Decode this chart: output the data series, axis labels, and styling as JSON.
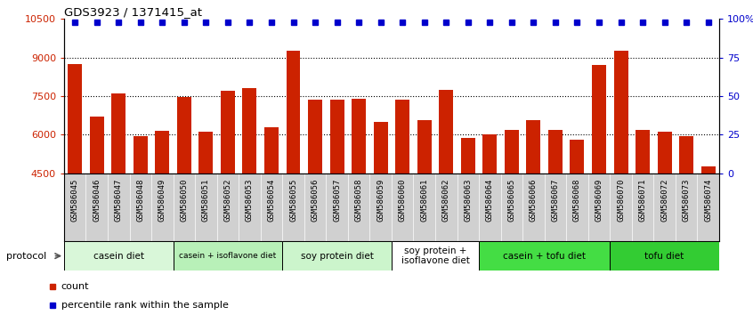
{
  "title": "GDS3923 / 1371415_at",
  "samples": [
    "GSM586045",
    "GSM586046",
    "GSM586047",
    "GSM586048",
    "GSM586049",
    "GSM586050",
    "GSM586051",
    "GSM586052",
    "GSM586053",
    "GSM586054",
    "GSM586055",
    "GSM586056",
    "GSM586057",
    "GSM586058",
    "GSM586059",
    "GSM586060",
    "GSM586061",
    "GSM586062",
    "GSM586063",
    "GSM586064",
    "GSM586065",
    "GSM586066",
    "GSM586067",
    "GSM586068",
    "GSM586069",
    "GSM586070",
    "GSM586071",
    "GSM586072",
    "GSM586073",
    "GSM586074"
  ],
  "counts": [
    8750,
    6700,
    7600,
    5950,
    6150,
    7450,
    6100,
    7700,
    7820,
    6300,
    9250,
    7350,
    7350,
    7400,
    6500,
    7350,
    6550,
    7750,
    5870,
    6000,
    6200,
    6550,
    6200,
    5800,
    8700,
    9280,
    6200,
    6100,
    5950,
    4750
  ],
  "percentile_ranks": [
    98,
    98,
    98,
    98,
    98,
    98,
    98,
    98,
    98,
    98,
    98,
    98,
    98,
    98,
    98,
    98,
    98,
    98,
    98,
    98,
    98,
    98,
    98,
    98,
    98,
    98,
    98,
    98,
    98,
    98
  ],
  "protocols": [
    {
      "label": "casein diet",
      "start": 0,
      "end": 5,
      "color": "#d9f7d9"
    },
    {
      "label": "casein + isoflavone diet",
      "start": 5,
      "end": 10,
      "color": "#b8f0b8"
    },
    {
      "label": "soy protein diet",
      "start": 10,
      "end": 15,
      "color": "#ccf5cc"
    },
    {
      "label": "soy protein +\nisoflavone diet",
      "start": 15,
      "end": 19,
      "color": "#ffffff"
    },
    {
      "label": "casein + tofu diet",
      "start": 19,
      "end": 25,
      "color": "#44dd44"
    },
    {
      "label": "tofu diet",
      "start": 25,
      "end": 30,
      "color": "#33cc33"
    }
  ],
  "ylim": [
    4500,
    10500
  ],
  "yticks": [
    4500,
    6000,
    7500,
    9000,
    10500
  ],
  "bar_color": "#cc2200",
  "percentile_color": "#0000cc",
  "bg_color": "#ffffff",
  "right_yticks": [
    0,
    25,
    50,
    75,
    100
  ],
  "right_ylim": [
    0,
    100
  ],
  "tick_bg_color": "#d0d0d0"
}
